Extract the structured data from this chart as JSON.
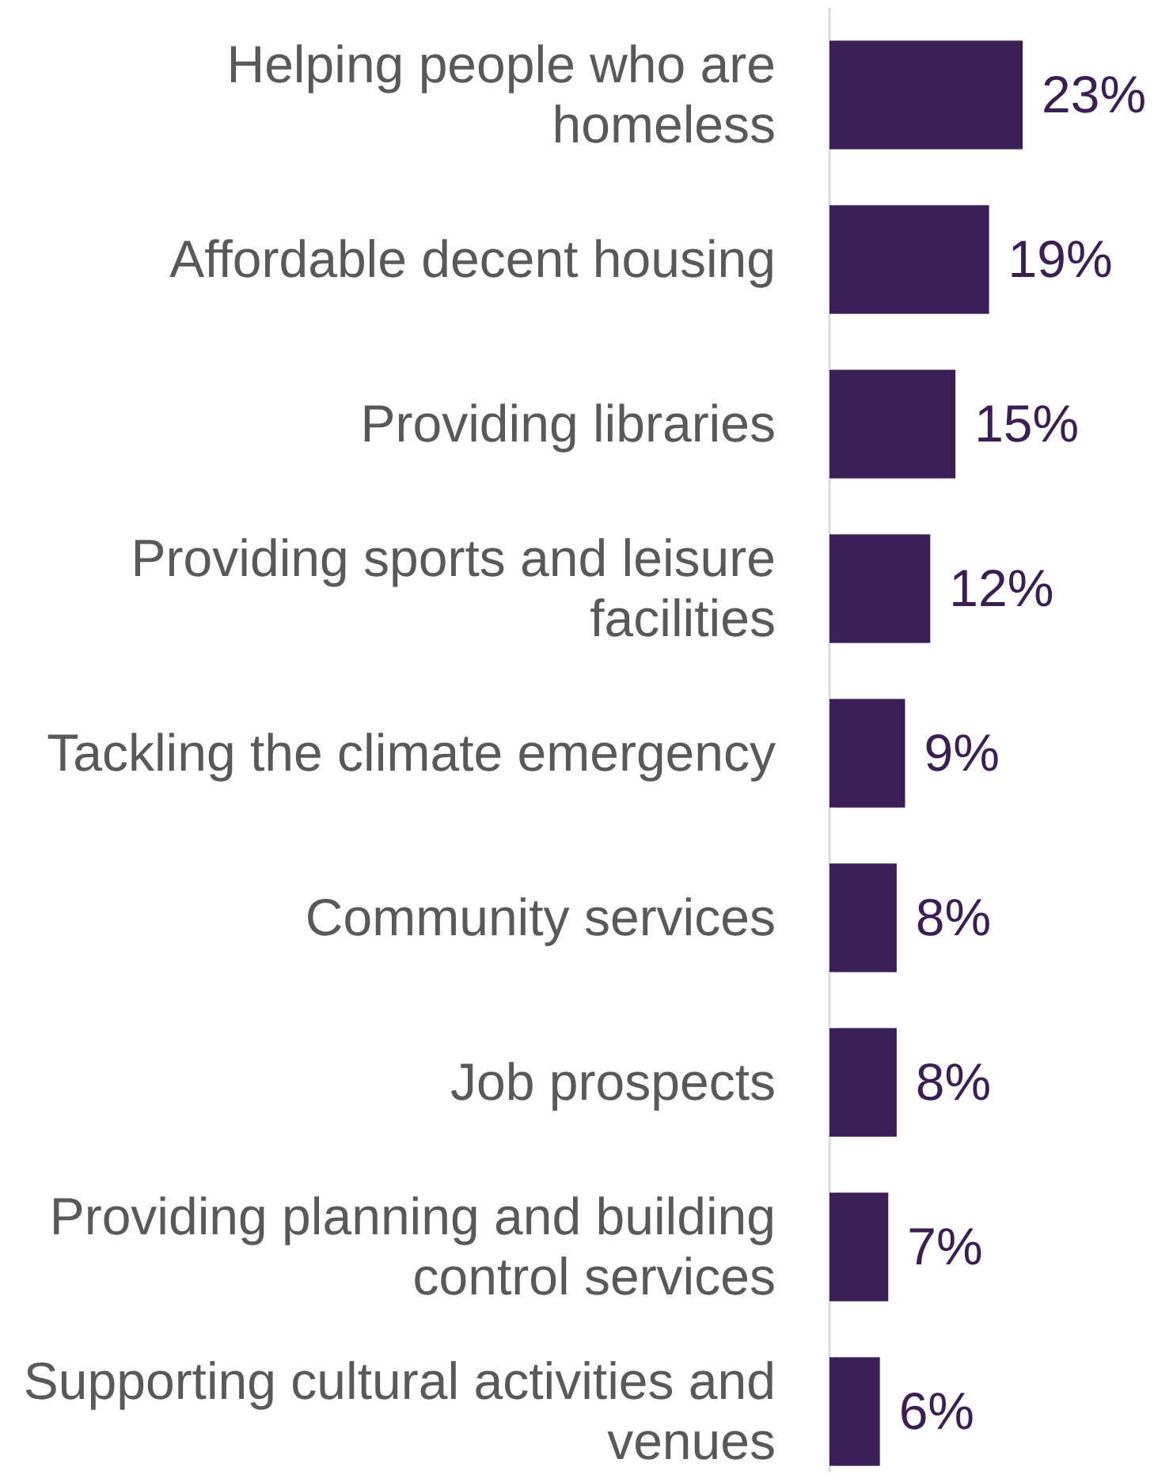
{
  "chart_data": {
    "type": "bar",
    "orientation": "horizontal",
    "categories": [
      "Helping people who are homeless",
      "Affordable decent housing",
      "Providing libraries",
      "Providing sports and leisure facilities",
      "Tackling the climate emergency",
      "Community services",
      "Job prospects",
      "Providing planning and building control services",
      "Supporting cultural activities and venues"
    ],
    "values": [
      23,
      19,
      15,
      12,
      9,
      8,
      8,
      7,
      6
    ],
    "value_labels": [
      "23%",
      "19%",
      "15%",
      "12%",
      "9%",
      "8%",
      "8%",
      "7%",
      "6%"
    ],
    "color": "#3b1e54"
  }
}
